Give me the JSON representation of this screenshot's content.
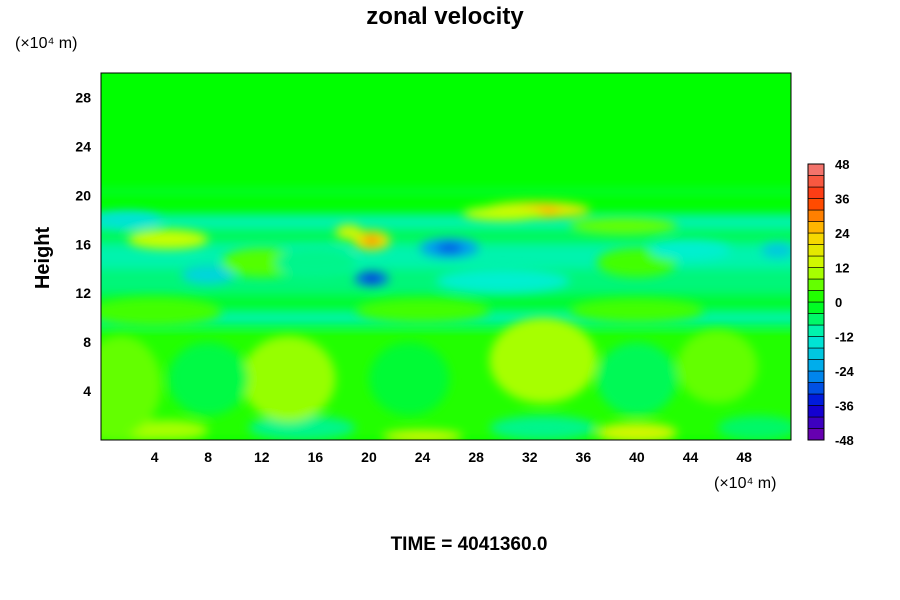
{
  "chart_data": {
    "type": "heatmap",
    "title": "zonal velocity",
    "xlabel": "",
    "ylabel": "Height",
    "x_unit": "(×10⁴ m)",
    "y_unit": "(×10⁴ m)",
    "xlim": [
      0,
      51.5
    ],
    "ylim": [
      0,
      30
    ],
    "xticks": [
      4,
      8,
      12,
      16,
      20,
      24,
      28,
      32,
      36,
      40,
      44,
      48
    ],
    "yticks": [
      4,
      8,
      12,
      16,
      20,
      24,
      28
    ],
    "grid": false,
    "colorbar": {
      "min": -48,
      "max": 48,
      "step": 4,
      "tick_values": [
        48,
        36,
        24,
        12,
        0,
        -12,
        -24,
        -36,
        -48
      ],
      "colors": {
        "-48": "#7a00a8",
        "-36": "#0000d8",
        "-24": "#00a0f0",
        "-12": "#00f0d0",
        "0": "#00ff00",
        "12": "#c8ff00",
        "24": "#ffd000",
        "36": "#ff3000",
        "48": "#f08080"
      }
    },
    "background_value": 0,
    "bands": [
      {
        "y_from": 0,
        "y_to": 9,
        "value": 2
      },
      {
        "y_from": 9.5,
        "y_to": 10.3,
        "value": -12
      },
      {
        "y_from": 10.5,
        "y_to": 12,
        "value": -3
      },
      {
        "y_from": 12,
        "y_to": 14,
        "value": -7
      },
      {
        "y_from": 14,
        "y_to": 16,
        "value": -10
      },
      {
        "y_from": 16,
        "y_to": 17.3,
        "value": -5
      },
      {
        "y_from": 17.3,
        "y_to": 18.5,
        "value": -10
      },
      {
        "y_from": 20.1,
        "y_to": 20.5,
        "value": -4
      }
    ],
    "features": [
      {
        "x": 2,
        "y": 0.6,
        "rx": 3.5,
        "ry": 0.8,
        "value": 6
      },
      {
        "x": 5,
        "y": 0.8,
        "rx": 3,
        "ry": 0.8,
        "value": 10
      },
      {
        "x": 15,
        "y": 1.0,
        "rx": 4,
        "ry": 1.0,
        "value": -8
      },
      {
        "x": 24,
        "y": 0.3,
        "rx": 3,
        "ry": 0.5,
        "value": 14
      },
      {
        "x": 33,
        "y": 1.0,
        "rx": 4,
        "ry": 1.0,
        "value": -8
      },
      {
        "x": 40,
        "y": 0.6,
        "rx": 3,
        "ry": 0.8,
        "value": 14
      },
      {
        "x": 49,
        "y": 1.0,
        "rx": 3,
        "ry": 1.0,
        "value": -6
      },
      {
        "x": 1.5,
        "y": 4.5,
        "rx": 3,
        "ry": 4,
        "value": 6
      },
      {
        "x": 14,
        "y": 5,
        "rx": 3.5,
        "ry": 3.5,
        "value": 9
      },
      {
        "x": 33,
        "y": 6.5,
        "rx": 4,
        "ry": 3.5,
        "value": 10
      },
      {
        "x": 46,
        "y": 6,
        "rx": 3,
        "ry": 3,
        "value": 6
      },
      {
        "x": 8,
        "y": 5,
        "rx": 3,
        "ry": 3,
        "value": -4
      },
      {
        "x": 23,
        "y": 5,
        "rx": 3,
        "ry": 3,
        "value": -3
      },
      {
        "x": 40,
        "y": 5,
        "rx": 3,
        "ry": 3,
        "value": -5
      },
      {
        "x": 4,
        "y": 10.5,
        "rx": 5,
        "ry": 1.2,
        "value": 4
      },
      {
        "x": 24,
        "y": 10.6,
        "rx": 5,
        "ry": 1.0,
        "value": 4
      },
      {
        "x": 40,
        "y": 10.6,
        "rx": 5,
        "ry": 1.0,
        "value": 4
      },
      {
        "x": 8,
        "y": 13.5,
        "rx": 2,
        "ry": 0.8,
        "value": -16
      },
      {
        "x": 12,
        "y": 14.5,
        "rx": 3,
        "ry": 1.2,
        "value": 5
      },
      {
        "x": 5,
        "y": 16.4,
        "rx": 3,
        "ry": 0.8,
        "value": 12
      },
      {
        "x": 16,
        "y": 14.5,
        "rx": 3,
        "ry": 1.2,
        "value": -8
      },
      {
        "x": 20.2,
        "y": 16.3,
        "rx": 1.4,
        "ry": 0.8,
        "value": 20
      },
      {
        "x": 20.2,
        "y": 16.3,
        "rx": 0.6,
        "ry": 0.35,
        "value": 30
      },
      {
        "x": 18.5,
        "y": 17.0,
        "rx": 1.0,
        "ry": 0.6,
        "value": 14
      },
      {
        "x": 20.2,
        "y": 13.2,
        "rx": 1.3,
        "ry": 0.6,
        "value": -28
      },
      {
        "x": 20.2,
        "y": 13.2,
        "rx": 0.5,
        "ry": 0.3,
        "value": -36
      },
      {
        "x": 26,
        "y": 15.7,
        "rx": 2.2,
        "ry": 0.8,
        "value": -24
      },
      {
        "x": 26,
        "y": 15.7,
        "rx": 1.0,
        "ry": 0.4,
        "value": -30
      },
      {
        "x": 32.5,
        "y": 18.8,
        "rx": 4,
        "ry": 0.7,
        "value": 18
      },
      {
        "x": 32.5,
        "y": 18.8,
        "rx": 1.8,
        "ry": 0.4,
        "value": 26
      },
      {
        "x": 30,
        "y": 18.5,
        "rx": 3,
        "ry": 0.6,
        "value": 12
      },
      {
        "x": 39,
        "y": 17.5,
        "rx": 4,
        "ry": 0.7,
        "value": 6
      },
      {
        "x": 30,
        "y": 13.0,
        "rx": 5,
        "ry": 1.0,
        "value": -12
      },
      {
        "x": 40,
        "y": 14.5,
        "rx": 3,
        "ry": 1.2,
        "value": 4
      },
      {
        "x": 50.5,
        "y": 15.5,
        "rx": 1.2,
        "ry": 0.6,
        "value": -18
      },
      {
        "x": 2,
        "y": 18.0,
        "rx": 2.5,
        "ry": 0.7,
        "value": -14
      },
      {
        "x": 44,
        "y": 15.5,
        "rx": 3,
        "ry": 0.8,
        "value": -12
      }
    ]
  },
  "footer": {
    "time_label": "TIME = 4041360.0"
  }
}
